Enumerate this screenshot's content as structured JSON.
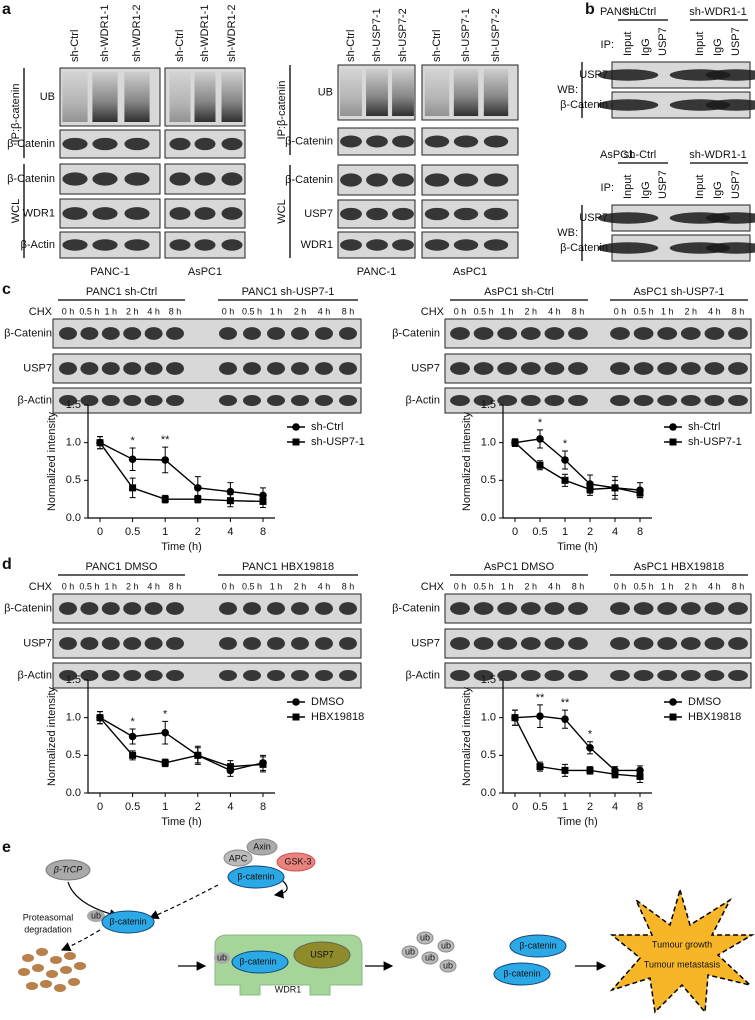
{
  "panel_a": {
    "label": "a",
    "left": {
      "lanes": [
        "sh-Ctrl",
        "sh-WDR1-1",
        "sh-WDR1-2",
        "sh-Ctrl",
        "sh-WDR1-1",
        "sh-WDR1-2"
      ],
      "groups": [
        "IP:β-catenin",
        "WCL"
      ],
      "rows": [
        "UB",
        "β-Catenin",
        "β-Catenin",
        "WDR1",
        "β-Actin"
      ],
      "cells": [
        "PANC-1",
        "AsPC1"
      ]
    },
    "right": {
      "lanes": [
        "sh-Ctrl",
        "sh-USP7-1",
        "sh-USP7-2",
        "sh-Ctrl",
        "sh-USP7-1",
        "sh-USP7-2"
      ],
      "groups": [
        "IP:β-catenin",
        "WCL"
      ],
      "rows": [
        "UB",
        "β-Catenin",
        "β-Catenin",
        "USP7",
        "WDR1"
      ],
      "cells": [
        "PANC-1",
        "AsPC1"
      ]
    }
  },
  "panel_b": {
    "label": "b",
    "blocks": [
      {
        "cell": "PANC-1",
        "groups": [
          "sh-Ctrl",
          "sh-WDR1-1"
        ],
        "ip": "IP:",
        "lanes": [
          "Input",
          "IgG",
          "USP7",
          "Input",
          "IgG",
          "USP7"
        ],
        "wb": "WB:",
        "rows": [
          "USP7",
          "β-Catenin"
        ]
      },
      {
        "cell": "AsPC1",
        "groups": [
          "sh-Ctrl",
          "sh-WDR1-1"
        ],
        "ip": "IP:",
        "lanes": [
          "Input",
          "IgG",
          "USP7",
          "Input",
          "IgG",
          "USP7"
        ],
        "wb": "WB:",
        "rows": [
          "USP7",
          "β-Catenin"
        ]
      }
    ]
  },
  "panel_c": {
    "label": "c",
    "blots": [
      {
        "groups": [
          "PANC1 sh-Ctrl",
          "PANC1 sh-USP7-1"
        ],
        "chx": "CHX",
        "times": [
          "0 h",
          "0.5 h",
          "1 h",
          "2 h",
          "4 h",
          "8 h",
          "0 h",
          "0.5 h",
          "1 h",
          "2 h",
          "4 h",
          "8 h"
        ],
        "rows": [
          "β-Catenin",
          "USP7",
          "β-Actin"
        ]
      },
      {
        "groups": [
          "AsPC1 sh-Ctrl",
          "AsPC1 sh-USP7-1"
        ],
        "chx": "CHX",
        "times": [
          "0 h",
          "0.5 h",
          "1 h",
          "2 h",
          "4 h",
          "8 h",
          "0 h",
          "0.5 h",
          "1 h",
          "2 h",
          "4 h",
          "8 h"
        ],
        "rows": [
          "β-Catenin",
          "USP7",
          "β-Actin"
        ]
      }
    ]
  },
  "panel_d": {
    "label": "d",
    "blots": [
      {
        "groups": [
          "PANC1 DMSO",
          "PANC1 HBX19818"
        ],
        "chx": "CHX",
        "times": [
          "0 h",
          "0.5 h",
          "1 h",
          "2 h",
          "4 h",
          "8 h",
          "0 h",
          "0.5 h",
          "1 h",
          "2 h",
          "4 h",
          "8 h"
        ],
        "rows": [
          "β-Catenin",
          "USP7",
          "β-Actin"
        ]
      },
      {
        "groups": [
          "AsPC1 DMSO",
          "AsPC1 HBX19818"
        ],
        "chx": "CHX",
        "times": [
          "0 h",
          "0.5 h",
          "1 h",
          "2 h",
          "4 h",
          "8 h",
          "0 h",
          "0.5 h",
          "1 h",
          "2 h",
          "4 h",
          "8 h"
        ],
        "rows": [
          "β-Catenin",
          "USP7",
          "β-Actin"
        ]
      }
    ]
  },
  "chart_data": [
    {
      "type": "line",
      "xlabel": "Time (h)",
      "ylabel": "Normalized intensity",
      "categories": [
        "0",
        "0.5",
        "1",
        "2",
        "4",
        "8"
      ],
      "ylim": [
        0,
        1.5
      ],
      "yticks": [
        {
          "value": 0,
          "label": "0.0"
        },
        {
          "value": 0.5,
          "label": "0.5"
        },
        {
          "value": 1,
          "label": "1.0"
        },
        {
          "value": 1.5,
          "label": "1.5"
        }
      ],
      "series": [
        {
          "name": "sh-Ctrl",
          "marker": "circle",
          "color": "#000000",
          "values": [
            1.0,
            0.78,
            0.77,
            0.4,
            0.35,
            0.3
          ],
          "errors": [
            0.08,
            0.15,
            0.17,
            0.15,
            0.12,
            0.1
          ]
        },
        {
          "name": "sh-USP7-1",
          "marker": "square",
          "color": "#000000",
          "values": [
            1.0,
            0.4,
            0.25,
            0.25,
            0.23,
            0.22
          ],
          "errors": [
            0.08,
            0.13,
            0.05,
            0.05,
            0.08,
            0.08
          ]
        }
      ],
      "annotations": [
        {
          "x": "0.5",
          "text": "*"
        },
        {
          "x": "1",
          "text": "**"
        }
      ]
    },
    {
      "type": "line",
      "xlabel": "Time (h)",
      "ylabel": "Normalized intensity",
      "categories": [
        "0",
        "0.5",
        "1",
        "2",
        "4",
        "8"
      ],
      "ylim": [
        0,
        1.5
      ],
      "yticks": [
        {
          "value": 0,
          "label": "0.0"
        },
        {
          "value": 0.5,
          "label": "0.5"
        },
        {
          "value": 1,
          "label": "1.0"
        },
        {
          "value": 1.5,
          "label": "1.5"
        }
      ],
      "series": [
        {
          "name": "sh-Ctrl",
          "marker": "circle",
          "color": "#000000",
          "values": [
            1.0,
            1.05,
            0.77,
            0.45,
            0.4,
            0.37
          ],
          "errors": [
            0.05,
            0.12,
            0.12,
            0.12,
            0.15,
            0.1
          ]
        },
        {
          "name": "sh-USP7-1",
          "marker": "square",
          "color": "#000000",
          "values": [
            1.0,
            0.7,
            0.5,
            0.38,
            0.4,
            0.33
          ],
          "errors": [
            0.05,
            0.06,
            0.08,
            0.08,
            0.1,
            0.06
          ]
        }
      ],
      "annotations": [
        {
          "x": "0.5",
          "text": "*"
        },
        {
          "x": "1",
          "text": "*"
        }
      ]
    },
    {
      "type": "line",
      "xlabel": "Time (h)",
      "ylabel": "Normalized intensity",
      "categories": [
        "0",
        "0.5",
        "1",
        "2",
        "4",
        "8"
      ],
      "ylim": [
        0,
        1.5
      ],
      "yticks": [
        {
          "value": 0,
          "label": "0.0"
        },
        {
          "value": 0.5,
          "label": "0.5"
        },
        {
          "value": 1,
          "label": "1.0"
        },
        {
          "value": 1.5,
          "label": "1.5"
        }
      ],
      "series": [
        {
          "name": "DMSO",
          "marker": "circle",
          "color": "#000000",
          "values": [
            1.0,
            0.75,
            0.8,
            0.5,
            0.3,
            0.4
          ],
          "errors": [
            0.08,
            0.1,
            0.15,
            0.12,
            0.08,
            0.1
          ]
        },
        {
          "name": "HBX19818",
          "marker": "square",
          "color": "#000000",
          "values": [
            1.0,
            0.5,
            0.4,
            0.5,
            0.35,
            0.38
          ],
          "errors": [
            0.08,
            0.06,
            0.05,
            0.1,
            0.08,
            0.1
          ]
        }
      ],
      "annotations": [
        {
          "x": "0.5",
          "text": "*"
        },
        {
          "x": "1",
          "text": "*"
        }
      ]
    },
    {
      "type": "line",
      "xlabel": "Time (h)",
      "ylabel": "Normalized intensity",
      "categories": [
        "0",
        "0.5",
        "1",
        "2",
        "4",
        "8"
      ],
      "ylim": [
        0,
        1.5
      ],
      "yticks": [
        {
          "value": 0,
          "label": "0.0"
        },
        {
          "value": 0.5,
          "label": "0.5"
        },
        {
          "value": 1,
          "label": "1.0"
        },
        {
          "value": 1.5,
          "label": "1.5"
        }
      ],
      "series": [
        {
          "name": "DMSO",
          "marker": "circle",
          "color": "#000000",
          "values": [
            1.0,
            1.02,
            0.98,
            0.6,
            0.3,
            0.3
          ],
          "errors": [
            0.1,
            0.15,
            0.12,
            0.08,
            0.05,
            0.06
          ]
        },
        {
          "name": "HBX19818",
          "marker": "square",
          "color": "#000000",
          "values": [
            1.0,
            0.35,
            0.3,
            0.3,
            0.25,
            0.22
          ],
          "errors": [
            0.1,
            0.06,
            0.08,
            0.05,
            0.05,
            0.08
          ]
        }
      ],
      "annotations": [
        {
          "x": "0.5",
          "text": "**"
        },
        {
          "x": "1",
          "text": "**"
        },
        {
          "x": "2",
          "text": "*"
        }
      ]
    }
  ],
  "panel_e": {
    "label": "e",
    "trcp": "β-TrCP",
    "apc": "APC",
    "axin": "Axin",
    "gsk3": "GSK-3",
    "beta_catenin": [
      "β-catenin",
      "β-catenin",
      "β-catenin",
      "β-catenin",
      "β-catenin"
    ],
    "ub": [
      "ub",
      "ub",
      "ub",
      "ub",
      "ub",
      "ub",
      "ub"
    ],
    "degradation": [
      "Proteasomal",
      "degradation"
    ],
    "usp7": "USP7",
    "wdr1": "WDR1",
    "outcomes": [
      "Tumour growth",
      "Tumour metastasis"
    ]
  }
}
